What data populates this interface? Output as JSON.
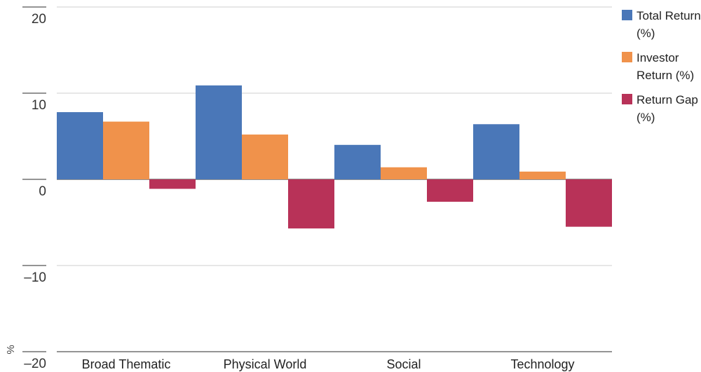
{
  "chart_data": {
    "type": "bar",
    "categories": [
      "Broad Thematic",
      "Physical World",
      "Social",
      "Technology"
    ],
    "series": [
      {
        "name": "Total Return (%)",
        "color": "#4a77b8",
        "values": [
          7.8,
          10.9,
          4.0,
          6.4
        ]
      },
      {
        "name": "Investor Return (%)",
        "color": "#f0924b",
        "values": [
          6.7,
          5.2,
          1.4,
          0.9
        ]
      },
      {
        "name": "Return Gap (%)",
        "color": "#b83258",
        "values": [
          -1.1,
          -5.7,
          -2.6,
          -5.5
        ]
      }
    ],
    "yticks": [
      {
        "value": 20,
        "label": "20"
      },
      {
        "value": 10,
        "label": "10"
      },
      {
        "value": 0,
        "label": "0"
      },
      {
        "value": -10,
        "label": "–10"
      },
      {
        "value": -20,
        "label": "–20"
      }
    ],
    "ylim": [
      -20,
      20
    ],
    "ylabel": "%",
    "xlabel": "",
    "title": "",
    "grid": true,
    "legend_position": "right"
  }
}
